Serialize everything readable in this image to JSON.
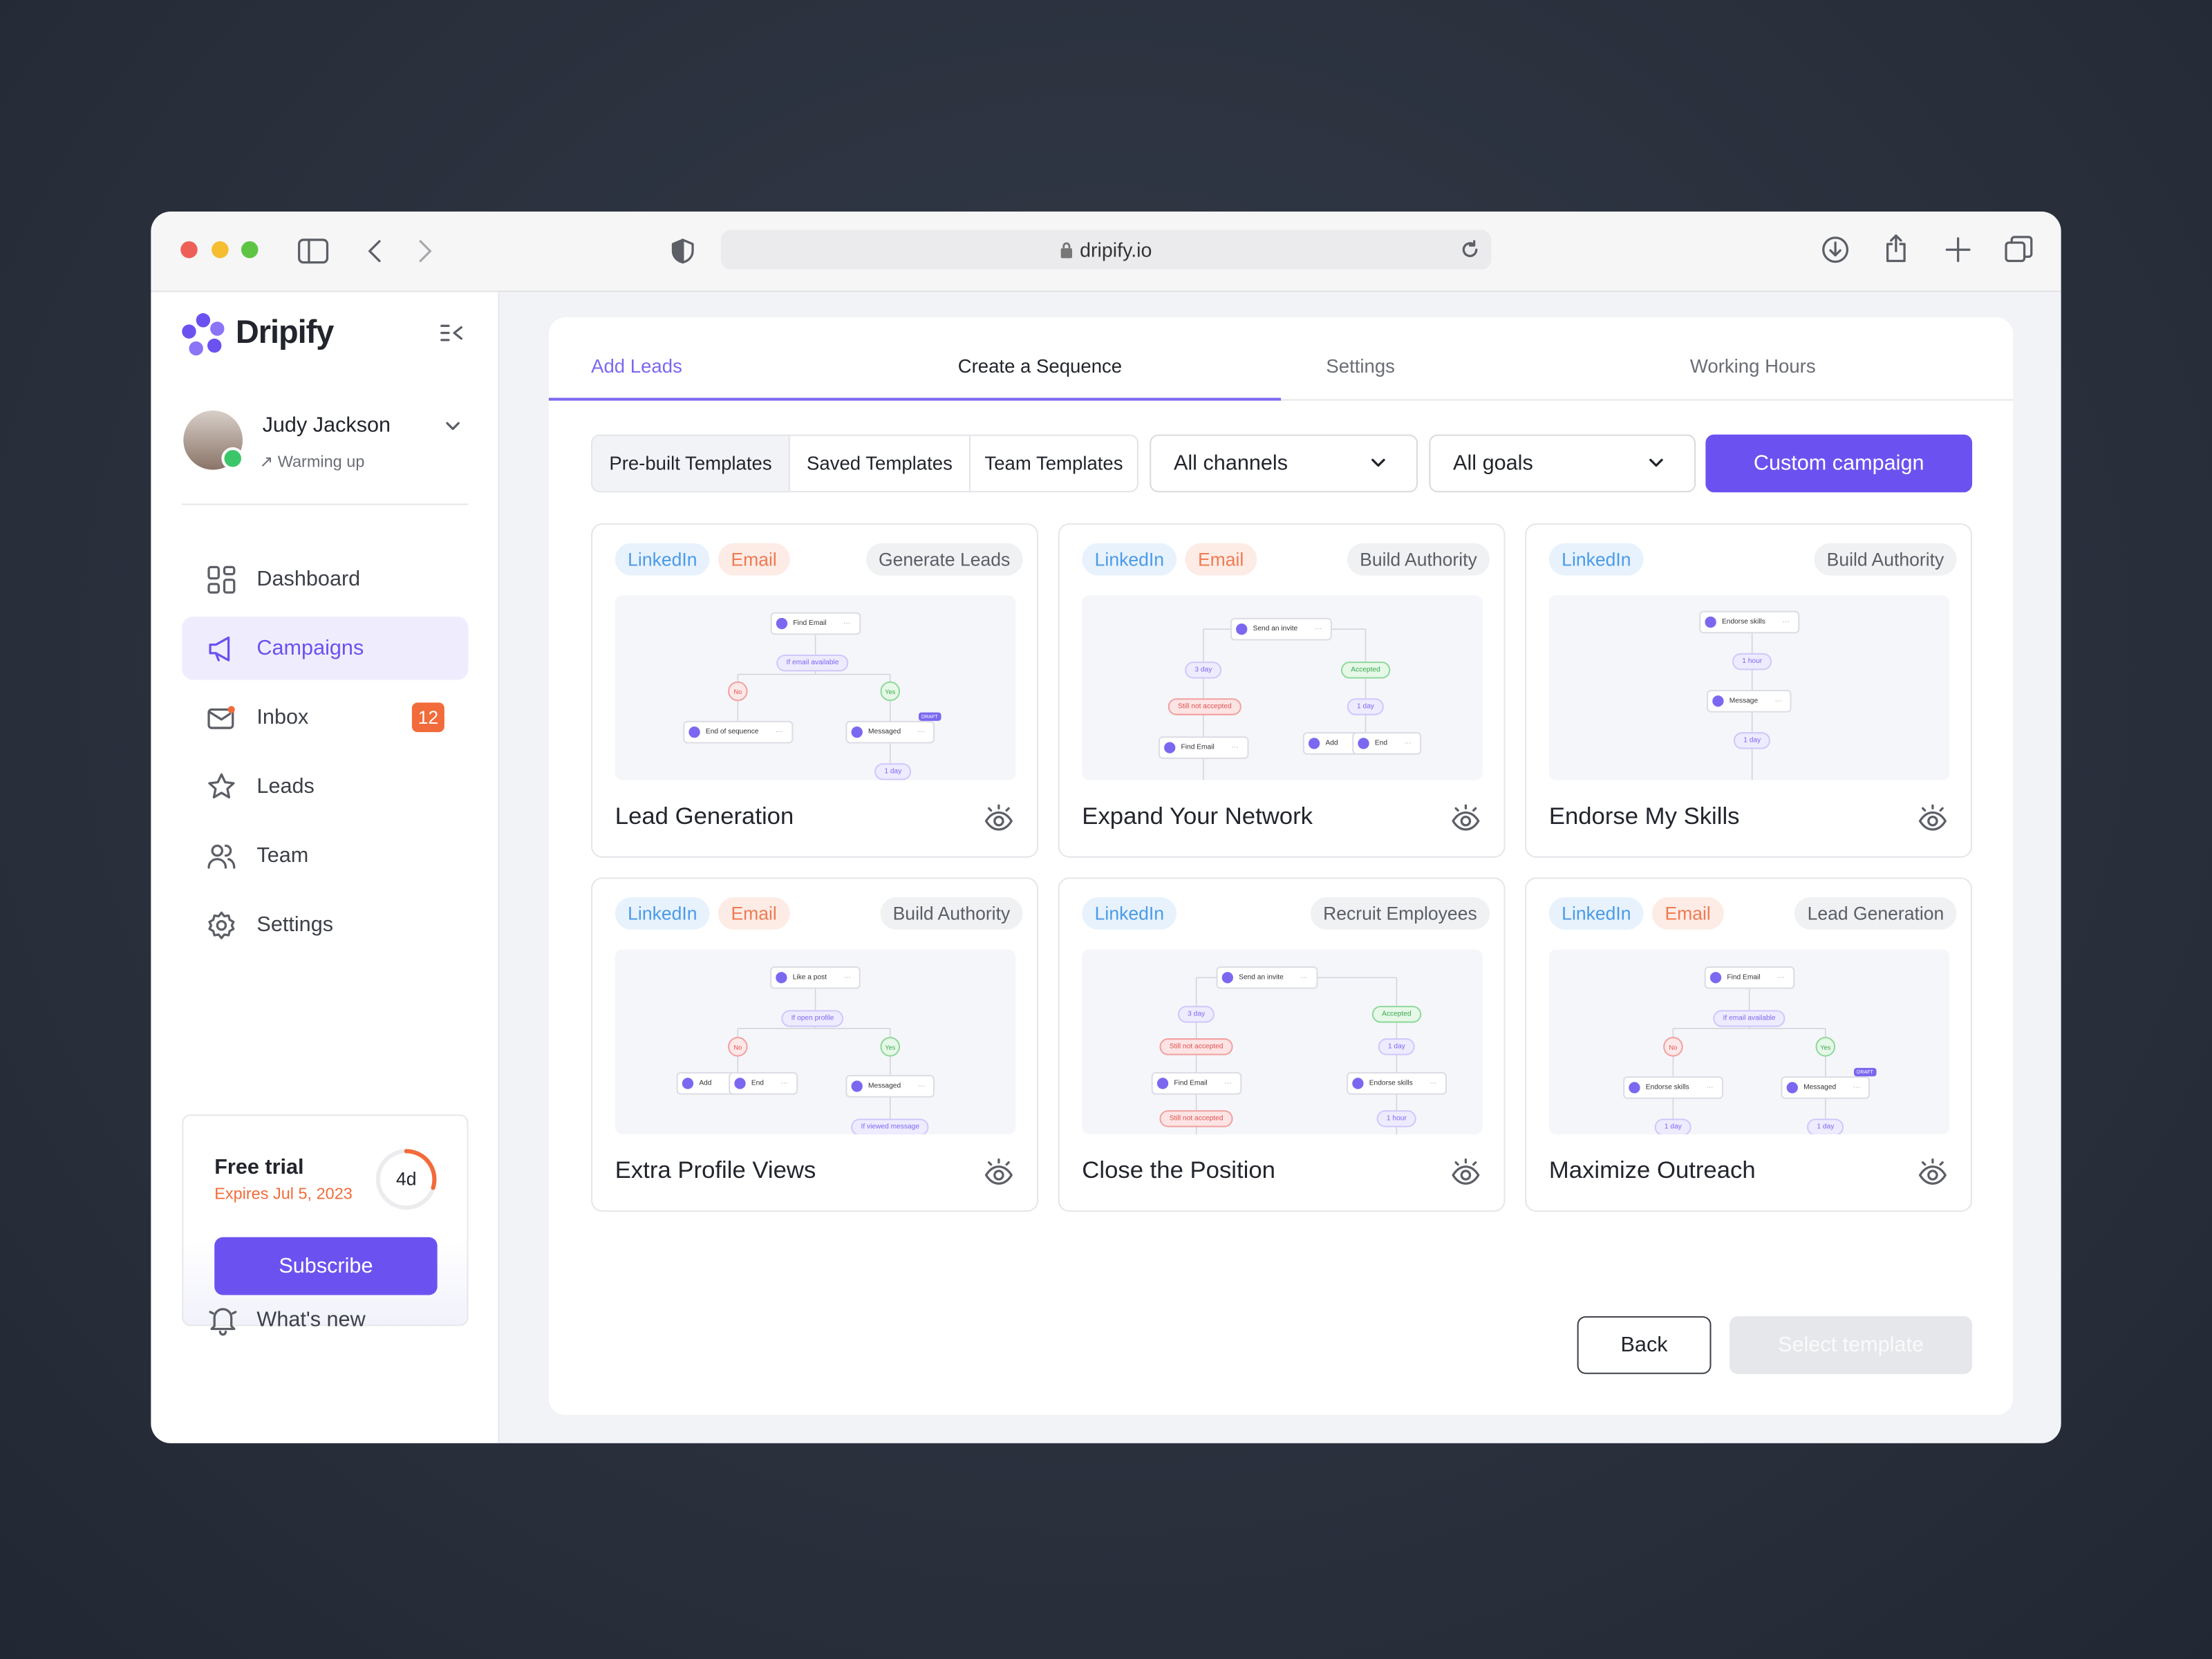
{
  "browser": {
    "url": "dripify.io"
  },
  "sidebar": {
    "brand": "Dripify",
    "user": {
      "name": "Judy Jackson",
      "status": "Warming up"
    },
    "nav": [
      {
        "label": "Dashboard"
      },
      {
        "label": "Campaigns"
      },
      {
        "label": "Inbox",
        "badge": "12"
      },
      {
        "label": "Leads"
      },
      {
        "label": "Team"
      },
      {
        "label": "Settings"
      }
    ],
    "trial": {
      "title": "Free trial",
      "expires": "Expires Jul 5, 2023",
      "remaining": "4d",
      "button": "Subscribe"
    },
    "whats_new": "What's new"
  },
  "main": {
    "steps": [
      "Add Leads",
      "Create a Sequence",
      "Settings",
      "Working Hours"
    ],
    "template_tabs": [
      "Pre-built Templates",
      "Saved Templates",
      "Team Templates"
    ],
    "filters": [
      "All channels",
      "All goals"
    ],
    "custom_button": "Custom campaign",
    "cards": [
      {
        "tags": [
          "LinkedIn",
          "Email"
        ],
        "goal": "Generate Leads",
        "title": "Lead Generation",
        "preview": [
          {
            "label": "Find Email",
            "kind": "node"
          },
          {
            "label": "If email available",
            "kind": "pill"
          },
          {
            "label": "No",
            "kind": "no"
          },
          {
            "label": "Yes",
            "kind": "yes"
          },
          {
            "label": "End of sequence",
            "kind": "node"
          },
          {
            "label": "Messaged",
            "kind": "node"
          },
          {
            "label": "DRAFT",
            "kind": "draft"
          },
          {
            "label": "1 day",
            "kind": "pill"
          }
        ]
      },
      {
        "tags": [
          "LinkedIn",
          "Email"
        ],
        "goal": "Build Authority",
        "title": "Expand Your Network",
        "preview": [
          {
            "label": "Send an invite",
            "kind": "node"
          },
          {
            "label": "3 day",
            "kind": "pill"
          },
          {
            "label": "Accepted",
            "kind": "green"
          },
          {
            "label": "Still not accepted",
            "kind": "red"
          },
          {
            "label": "1 day",
            "kind": "pill"
          },
          {
            "label": "Find Email",
            "kind": "node"
          },
          {
            "label": "Add",
            "kind": "node"
          },
          {
            "label": "End",
            "kind": "node"
          }
        ]
      },
      {
        "tags": [
          "LinkedIn"
        ],
        "goal": "Build Authority",
        "title": "Endorse My Skills",
        "preview": [
          {
            "label": "Endorse skills",
            "kind": "node"
          },
          {
            "label": "1 hour",
            "kind": "pill"
          },
          {
            "label": "Message",
            "kind": "node"
          },
          {
            "label": "1 day",
            "kind": "pill"
          }
        ]
      },
      {
        "tags": [
          "LinkedIn",
          "Email"
        ],
        "goal": "Build Authority",
        "title": "Extra Profile Views",
        "preview": [
          {
            "label": "Like a post",
            "kind": "node"
          },
          {
            "label": "If open profile",
            "kind": "pill"
          },
          {
            "label": "No",
            "kind": "no"
          },
          {
            "label": "Yes",
            "kind": "yes"
          },
          {
            "label": "Add",
            "kind": "node"
          },
          {
            "label": "End",
            "kind": "node"
          },
          {
            "label": "Messaged",
            "kind": "node"
          },
          {
            "label": "If viewed message",
            "kind": "pill"
          }
        ]
      },
      {
        "tags": [
          "LinkedIn"
        ],
        "goal": "Recruit Employees",
        "title": "Close the Position",
        "preview": [
          {
            "label": "Send an invite",
            "kind": "node"
          },
          {
            "label": "3 day",
            "kind": "pill"
          },
          {
            "label": "Accepted",
            "kind": "green"
          },
          {
            "label": "Still not accepted",
            "kind": "red"
          },
          {
            "label": "1 day",
            "kind": "pill"
          },
          {
            "label": "Find Email",
            "kind": "node"
          },
          {
            "label": "Endorse skills",
            "kind": "node"
          },
          {
            "label": "Still not accepted",
            "kind": "red"
          },
          {
            "label": "1 hour",
            "kind": "pill"
          }
        ]
      },
      {
        "tags": [
          "LinkedIn",
          "Email"
        ],
        "goal": "Lead Generation",
        "title": "Maximize Outreach",
        "preview": [
          {
            "label": "Find Email",
            "kind": "node"
          },
          {
            "label": "If email available",
            "kind": "pill"
          },
          {
            "label": "No",
            "kind": "no"
          },
          {
            "label": "Yes",
            "kind": "yes"
          },
          {
            "label": "Endorse skills",
            "kind": "node"
          },
          {
            "label": "Messaged",
            "kind": "node"
          },
          {
            "label": "DRAFT",
            "kind": "draft"
          },
          {
            "label": "1 day",
            "kind": "pill"
          },
          {
            "label": "1 day",
            "kind": "pill"
          }
        ]
      }
    ],
    "back": "Back",
    "select": "Select template"
  }
}
